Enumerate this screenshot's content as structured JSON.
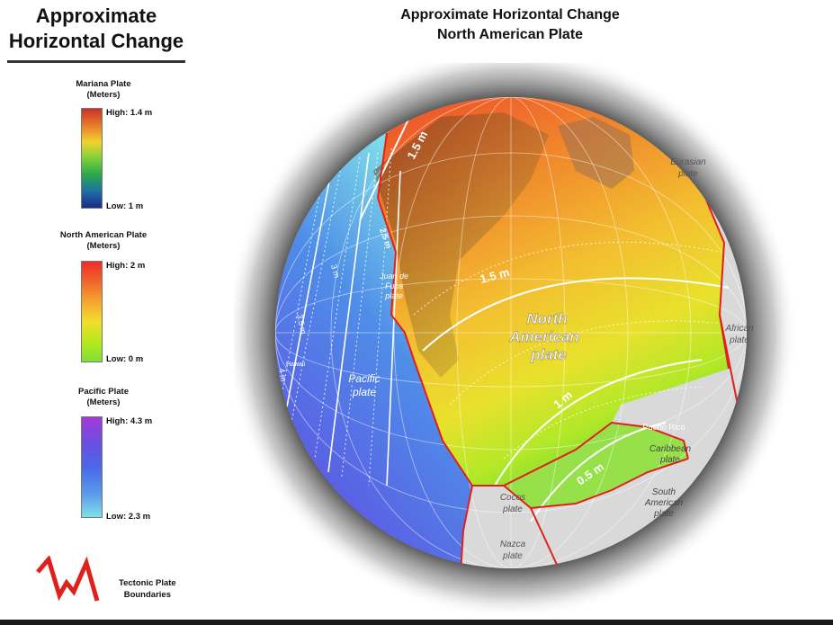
{
  "legend": {
    "title_line1": "Approximate",
    "title_line2": "Horizontal Change",
    "mariana": {
      "name": "Mariana Plate",
      "units": "(Meters)",
      "high": "High: 1.4 m",
      "low": "Low: 1 m"
    },
    "north_american": {
      "name": "North American Plate",
      "units": "(Meters)",
      "high": "High: 2 m",
      "low": "Low: 0 m"
    },
    "pacific": {
      "name": "Pacific Plate",
      "units": "(Meters)",
      "high": "High: 4.3 m",
      "low": "Low: 2.3 m"
    },
    "boundaries_line1": "Tectonic Plate",
    "boundaries_line2": "Boundaries",
    "boundary_color": "#e0201b"
  },
  "map": {
    "title_line1": "Approximate Horizontal Change",
    "title_line2": "North American Plate",
    "contours": {
      "c15_top": "1.5 m",
      "c15_mid": "1.5 m",
      "c1": "1 m",
      "c05": "0.5 m",
      "pac_a": "2.5 m",
      "pac_b": "3 m",
      "pac_c": "3.5 m",
      "pac_d": "4 m"
    },
    "plates": {
      "north_american_1": "North",
      "north_american_2": "American",
      "north_american_3": "plate",
      "pacific_1": "Pacific",
      "pacific_2": "plate",
      "juan_1": "Juan de",
      "juan_2": "Fuca",
      "juan_3": "plate",
      "eurasian_1": "Eurasian",
      "eurasian_2": "plate",
      "african_1": "African",
      "african_2": "plate",
      "caribbean_1": "Caribbean",
      "caribbean_2": "plate",
      "south_american_1": "South",
      "south_american_2": "American",
      "south_american_3": "plate",
      "cocos_1": "Cocos",
      "cocos_2": "plate",
      "nazca_1": "Nazca",
      "nazca_2": "plate"
    },
    "places": {
      "puerto_rico": "Puerto Rico",
      "hawaii": "Hawaii"
    }
  }
}
